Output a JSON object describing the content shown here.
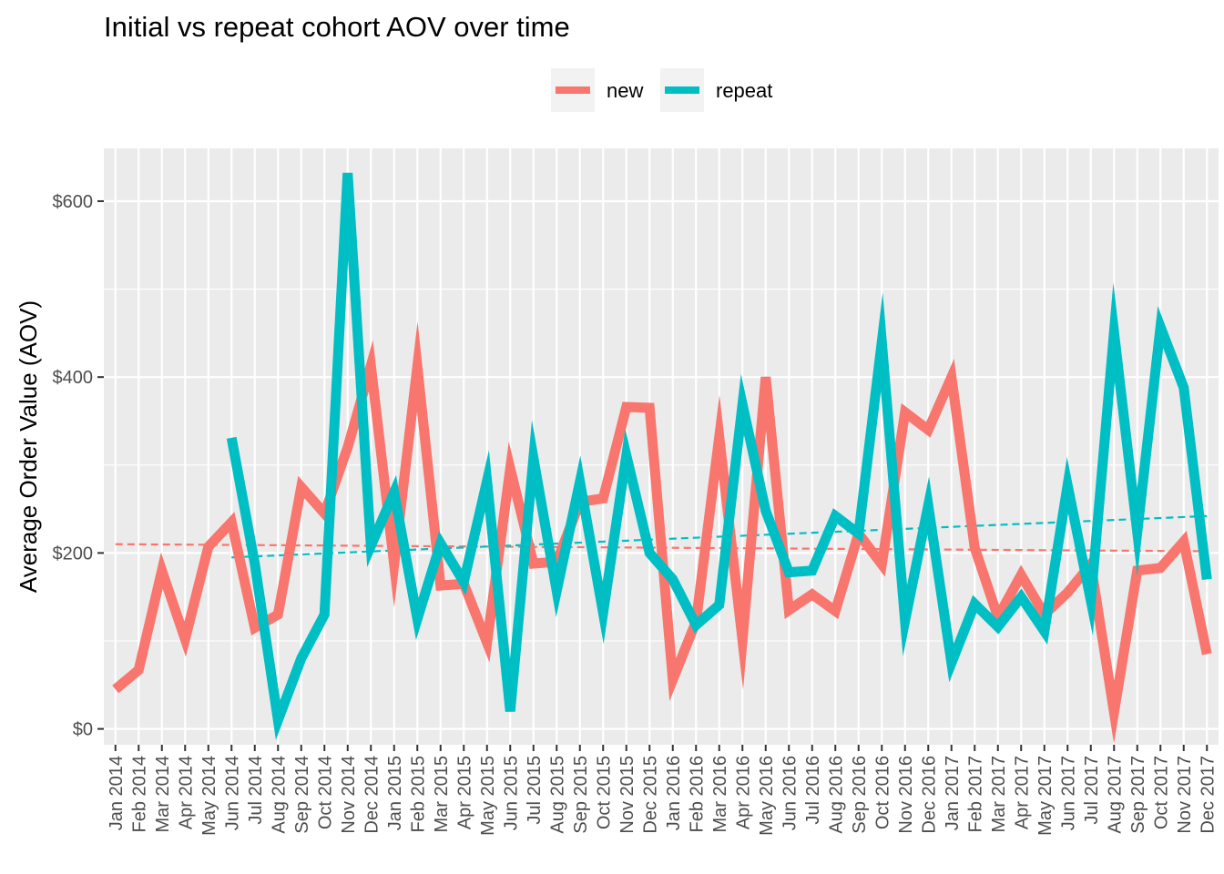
{
  "chart_data": {
    "type": "line",
    "title": "Initial vs repeat cohort AOV over time",
    "xlabel": "",
    "ylabel": "Average Order Value (AOV)",
    "ylim": [
      -18,
      660
    ],
    "yticks": [
      0,
      200,
      400,
      600
    ],
    "ytick_labels": [
      "$0",
      "$200",
      "$400",
      "$600"
    ],
    "grid": true,
    "legend_position": "top",
    "background_color": "#ebebeb",
    "grid_color": "#ffffff",
    "categories": [
      "Jan 2014",
      "Feb 2014",
      "Mar 2014",
      "Apr 2014",
      "May 2014",
      "Jun 2014",
      "Jul 2014",
      "Aug 2014",
      "Sep 2014",
      "Oct 2014",
      "Nov 2014",
      "Dec 2014",
      "Jan 2015",
      "Feb 2015",
      "Mar 2015",
      "Apr 2015",
      "May 2015",
      "Jun 2015",
      "Jul 2015",
      "Aug 2015",
      "Sep 2015",
      "Oct 2015",
      "Nov 2015",
      "Dec 2015",
      "Jan 2016",
      "Feb 2016",
      "Mar 2016",
      "Apr 2016",
      "May 2016",
      "Jun 2016",
      "Jul 2016",
      "Aug 2016",
      "Sep 2016",
      "Oct 2016",
      "Nov 2016",
      "Dec 2016",
      "Jan 2017",
      "Feb 2017",
      "Mar 2017",
      "Apr 2017",
      "May 2017",
      "Jun 2017",
      "Jul 2017",
      "Aug 2017",
      "Sep 2017",
      "Oct 2017",
      "Nov 2017",
      "Dec 2017"
    ],
    "series": [
      {
        "name": "new",
        "color": "#f8766d",
        "values": [
          45,
          67,
          180,
          102,
          207,
          235,
          115,
          130,
          275,
          245,
          320,
          413,
          187,
          412,
          163,
          165,
          98,
          296,
          188,
          190,
          258,
          262,
          366,
          365,
          56,
          122,
          332,
          101,
          400,
          135,
          153,
          134,
          222,
          187,
          360,
          340,
          400,
          206,
          127,
          175,
          130,
          155,
          187,
          19,
          180,
          183,
          213,
          85
        ],
        "trend": {
          "start": 210,
          "end": 202
        }
      },
      {
        "name": "repeat",
        "color": "#00bfc4",
        "values": [
          null,
          null,
          null,
          null,
          null,
          331,
          188,
          10,
          80,
          130,
          632,
          208,
          269,
          125,
          211,
          167,
          282,
          20,
          308,
          157,
          281,
          132,
          311,
          200,
          170,
          118,
          141,
          369,
          248,
          178,
          180,
          242,
          222,
          440,
          123,
          254,
          75,
          142,
          116,
          150,
          111,
          277,
          146,
          451,
          224,
          457,
          388,
          170
        ],
        "trend": {
          "start": 195,
          "end": 242
        }
      }
    ]
  }
}
